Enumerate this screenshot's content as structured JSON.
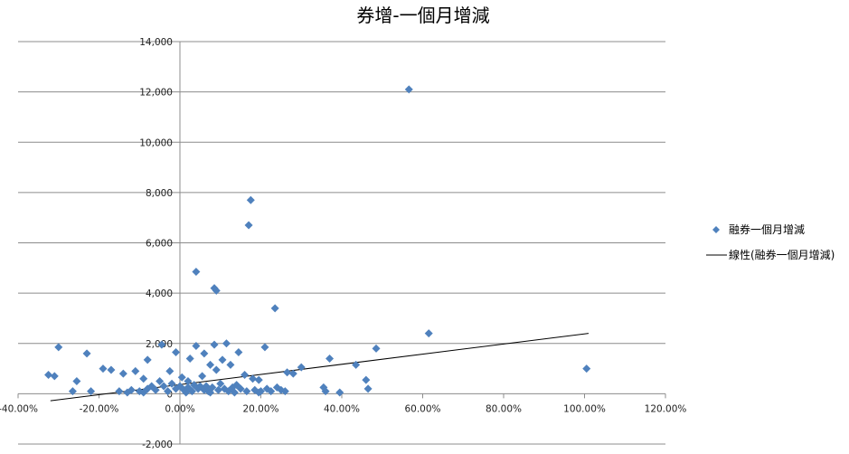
{
  "chart_data": {
    "type": "scatter",
    "title": "券增-一個月增減",
    "xlabel": "",
    "ylabel": "",
    "xlim": [
      -0.4,
      1.2
    ],
    "ylim": [
      -2000,
      14000
    ],
    "x_ticks": [
      -0.4,
      -0.2,
      0,
      0.2,
      0.4,
      0.6,
      0.8,
      1.0,
      1.2
    ],
    "x_tick_labels": [
      "-40.00%",
      "-20.00%",
      "0.00%",
      "20.00%",
      "40.00%",
      "60.00%",
      "80.00%",
      "100.00%",
      "120.00%"
    ],
    "y_ticks": [
      -2000,
      0,
      2000,
      4000,
      6000,
      8000,
      10000,
      12000,
      14000
    ],
    "y_tick_labels": [
      "-2,000",
      "0",
      "2,000",
      "4,000",
      "6,000",
      "8,000",
      "10,000",
      "12,000",
      "14,000"
    ],
    "grid": true,
    "legend_position": "right",
    "marker_color": "#4F81BD",
    "trend_color": "#000000",
    "series": [
      {
        "name": "融券一個月增減",
        "points": [
          [
            0.566,
            12100
          ],
          [
            0.175,
            7700
          ],
          [
            0.17,
            6700
          ],
          [
            0.04,
            4850
          ],
          [
            0.085,
            4200
          ],
          [
            0.09,
            4100
          ],
          [
            0.235,
            3400
          ],
          [
            0.615,
            2400
          ],
          [
            -0.3,
            1850
          ],
          [
            -0.045,
            1950
          ],
          [
            0.04,
            1900
          ],
          [
            0.085,
            1950
          ],
          [
            0.115,
            2000
          ],
          [
            0.21,
            1850
          ],
          [
            0.485,
            1800
          ],
          [
            -0.23,
            1600
          ],
          [
            -0.01,
            1650
          ],
          [
            0.145,
            1650
          ],
          [
            0.06,
            1600
          ],
          [
            0.37,
            1400
          ],
          [
            -0.08,
            1350
          ],
          [
            0.025,
            1400
          ],
          [
            0.075,
            1150
          ],
          [
            0.105,
            1350
          ],
          [
            0.125,
            1150
          ],
          [
            0.435,
            1150
          ],
          [
            1.005,
            1000
          ],
          [
            0.3,
            1050
          ],
          [
            -0.19,
            1000
          ],
          [
            -0.17,
            950
          ],
          [
            -0.14,
            800
          ],
          [
            -0.11,
            900
          ],
          [
            -0.025,
            900
          ],
          [
            0.09,
            950
          ],
          [
            0.265,
            850
          ],
          [
            0.28,
            800
          ],
          [
            -0.325,
            750
          ],
          [
            -0.31,
            700
          ],
          [
            0.16,
            750
          ],
          [
            0.46,
            550
          ],
          [
            -0.255,
            500
          ],
          [
            -0.09,
            600
          ],
          [
            0.005,
            650
          ],
          [
            0.055,
            700
          ],
          [
            0.18,
            600
          ],
          [
            0.195,
            550
          ],
          [
            -0.05,
            500
          ],
          [
            0.02,
            500
          ],
          [
            0.1,
            400
          ],
          [
            0.14,
            350
          ],
          [
            -0.07,
            300
          ],
          [
            0.24,
            250
          ],
          [
            0.355,
            250
          ],
          [
            0.465,
            200
          ],
          [
            -0.265,
            100
          ],
          [
            -0.22,
            100
          ],
          [
            -0.12,
            150
          ],
          [
            -0.15,
            100
          ],
          [
            0.05,
            300
          ],
          [
            0.36,
            100
          ],
          [
            0.395,
            50
          ],
          [
            0.26,
            100
          ],
          [
            -0.1,
            100
          ],
          [
            -0.08,
            200
          ],
          [
            -0.06,
            150
          ],
          [
            -0.04,
            300
          ],
          [
            -0.03,
            100
          ],
          [
            -0.02,
            400
          ],
          [
            -0.01,
            200
          ],
          [
            0.0,
            300
          ],
          [
            0.01,
            150
          ],
          [
            0.02,
            250
          ],
          [
            0.03,
            100
          ],
          [
            0.035,
            350
          ],
          [
            0.045,
            200
          ],
          [
            0.06,
            150
          ],
          [
            0.065,
            300
          ],
          [
            0.07,
            100
          ],
          [
            0.08,
            250
          ],
          [
            0.095,
            150
          ],
          [
            0.11,
            200
          ],
          [
            0.12,
            100
          ],
          [
            0.13,
            250
          ],
          [
            0.15,
            200
          ],
          [
            0.165,
            100
          ],
          [
            0.185,
            150
          ],
          [
            0.2,
            100
          ],
          [
            0.215,
            200
          ],
          [
            0.225,
            100
          ],
          [
            0.25,
            150
          ],
          [
            -0.13,
            50
          ],
          [
            -0.09,
            50
          ],
          [
            0.015,
            50
          ],
          [
            0.075,
            50
          ],
          [
            0.135,
            50
          ],
          [
            0.195,
            50
          ]
        ]
      }
    ],
    "trendline": {
      "name": "線性(融券一個月增減)",
      "type": "linear",
      "x": [
        -0.32,
        1.01
      ],
      "y": [
        -280,
        2400
      ]
    }
  }
}
